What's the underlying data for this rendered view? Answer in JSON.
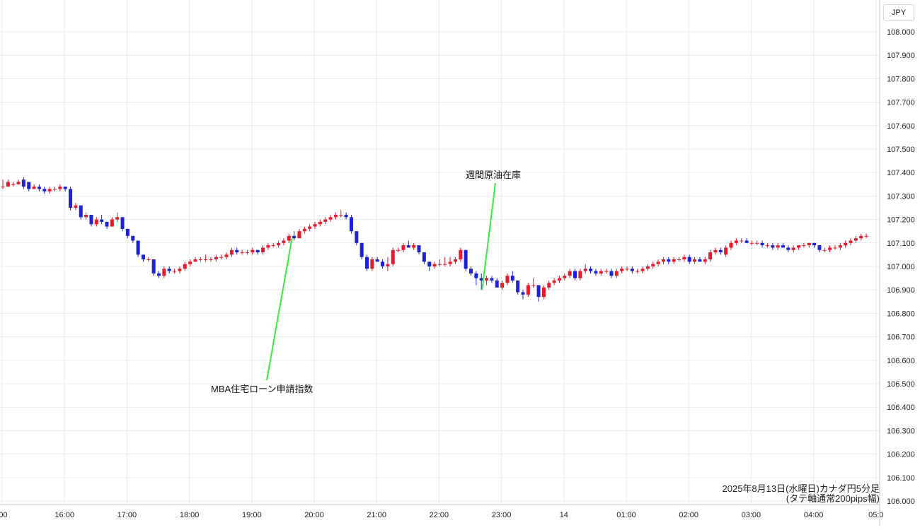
{
  "chart_data": {
    "type": "candlestick",
    "caption_line1": "2025年8月13日(水曜日)カナダ円5分足",
    "caption_line2": "(タテ軸通常200pips幅)",
    "currency": "JPY",
    "ylim": [
      106.0,
      108.0
    ],
    "y_ticks": [
      "108.000",
      "107.900",
      "107.800",
      "107.700",
      "107.600",
      "107.500",
      "107.400",
      "107.300",
      "107.200",
      "107.100",
      "107.000",
      "106.900",
      "106.800",
      "106.700",
      "106.600",
      "106.500",
      "106.400",
      "106.300",
      "106.200",
      "106.100",
      "106.000"
    ],
    "x_ticks": [
      ":00",
      "16:00",
      "17:00",
      "18:00",
      "19:00",
      "20:00",
      "21:00",
      "22:00",
      "23:00",
      "14",
      "01:00",
      "02:00",
      "03:00",
      "04:00",
      "05:0"
    ],
    "grid": true,
    "up_color": "#e8192c",
    "down_color": "#1e22d6",
    "annotation_color": "#3bea3b",
    "annotations": [
      {
        "label": "MBA住宅ローン申請指数",
        "bar": 56
      },
      {
        "label": "週間原油在庫",
        "bar": 92
      }
    ],
    "candles": [
      {
        "o": 107.34,
        "h": 107.37,
        "l": 107.33,
        "c": 107.34
      },
      {
        "o": 107.34,
        "h": 107.37,
        "l": 107.34,
        "c": 107.36
      },
      {
        "o": 107.35,
        "h": 107.36,
        "l": 107.34,
        "c": 107.35
      },
      {
        "o": 107.35,
        "h": 107.37,
        "l": 107.35,
        "c": 107.36
      },
      {
        "o": 107.37,
        "h": 107.38,
        "l": 107.33,
        "c": 107.34
      },
      {
        "o": 107.36,
        "h": 107.36,
        "l": 107.32,
        "c": 107.33
      },
      {
        "o": 107.33,
        "h": 107.35,
        "l": 107.33,
        "c": 107.34
      },
      {
        "o": 107.34,
        "h": 107.35,
        "l": 107.32,
        "c": 107.33
      },
      {
        "o": 107.33,
        "h": 107.34,
        "l": 107.31,
        "c": 107.32
      },
      {
        "o": 107.32,
        "h": 107.34,
        "l": 107.31,
        "c": 107.33
      },
      {
        "o": 107.33,
        "h": 107.34,
        "l": 107.32,
        "c": 107.33
      },
      {
        "o": 107.33,
        "h": 107.35,
        "l": 107.32,
        "c": 107.34
      },
      {
        "o": 107.34,
        "h": 107.34,
        "l": 107.32,
        "c": 107.33
      },
      {
        "o": 107.33,
        "h": 107.34,
        "l": 107.24,
        "c": 107.25
      },
      {
        "o": 107.25,
        "h": 107.27,
        "l": 107.24,
        "c": 107.26
      },
      {
        "o": 107.26,
        "h": 107.26,
        "l": 107.2,
        "c": 107.21
      },
      {
        "o": 107.21,
        "h": 107.23,
        "l": 107.2,
        "c": 107.22
      },
      {
        "o": 107.22,
        "h": 107.22,
        "l": 107.17,
        "c": 107.18
      },
      {
        "o": 107.18,
        "h": 107.21,
        "l": 107.17,
        "c": 107.2
      },
      {
        "o": 107.2,
        "h": 107.22,
        "l": 107.18,
        "c": 107.19
      },
      {
        "o": 107.19,
        "h": 107.19,
        "l": 107.16,
        "c": 107.17
      },
      {
        "o": 107.17,
        "h": 107.21,
        "l": 107.17,
        "c": 107.2
      },
      {
        "o": 107.2,
        "h": 107.23,
        "l": 107.19,
        "c": 107.21
      },
      {
        "o": 107.21,
        "h": 107.21,
        "l": 107.15,
        "c": 107.16
      },
      {
        "o": 107.16,
        "h": 107.16,
        "l": 107.12,
        "c": 107.13
      },
      {
        "o": 107.13,
        "h": 107.13,
        "l": 107.1,
        "c": 107.11
      },
      {
        "o": 107.11,
        "h": 107.11,
        "l": 107.04,
        "c": 107.05
      },
      {
        "o": 107.05,
        "h": 107.05,
        "l": 107.02,
        "c": 107.03
      },
      {
        "o": 107.03,
        "h": 107.04,
        "l": 107.02,
        "c": 107.03
      },
      {
        "o": 107.03,
        "h": 107.03,
        "l": 106.96,
        "c": 106.97
      },
      {
        "o": 106.97,
        "h": 106.98,
        "l": 106.95,
        "c": 106.96
      },
      {
        "o": 106.96,
        "h": 107.0,
        "l": 106.95,
        "c": 106.99
      },
      {
        "o": 106.99,
        "h": 107.0,
        "l": 106.97,
        "c": 106.98
      },
      {
        "o": 106.98,
        "h": 106.99,
        "l": 106.97,
        "c": 106.98
      },
      {
        "o": 106.98,
        "h": 107.0,
        "l": 106.97,
        "c": 106.99
      },
      {
        "o": 106.99,
        "h": 107.02,
        "l": 106.98,
        "c": 107.01
      },
      {
        "o": 107.01,
        "h": 107.03,
        "l": 107.0,
        "c": 107.02
      },
      {
        "o": 107.02,
        "h": 107.04,
        "l": 107.02,
        "c": 107.03
      },
      {
        "o": 107.03,
        "h": 107.04,
        "l": 107.02,
        "c": 107.03
      },
      {
        "o": 107.03,
        "h": 107.05,
        "l": 107.02,
        "c": 107.03
      },
      {
        "o": 107.03,
        "h": 107.04,
        "l": 107.02,
        "c": 107.03
      },
      {
        "o": 107.03,
        "h": 107.05,
        "l": 107.02,
        "c": 107.04
      },
      {
        "o": 107.04,
        "h": 107.05,
        "l": 107.03,
        "c": 107.04
      },
      {
        "o": 107.04,
        "h": 107.06,
        "l": 107.03,
        "c": 107.05
      },
      {
        "o": 107.05,
        "h": 107.08,
        "l": 107.04,
        "c": 107.07
      },
      {
        "o": 107.07,
        "h": 107.08,
        "l": 107.05,
        "c": 107.06
      },
      {
        "o": 107.06,
        "h": 107.07,
        "l": 107.05,
        "c": 107.06
      },
      {
        "o": 107.06,
        "h": 107.07,
        "l": 107.05,
        "c": 107.06
      },
      {
        "o": 107.06,
        "h": 107.08,
        "l": 107.05,
        "c": 107.07
      },
      {
        "o": 107.07,
        "h": 107.07,
        "l": 107.05,
        "c": 107.06
      },
      {
        "o": 107.06,
        "h": 107.09,
        "l": 107.05,
        "c": 107.08
      },
      {
        "o": 107.08,
        "h": 107.1,
        "l": 107.07,
        "c": 107.09
      },
      {
        "o": 107.09,
        "h": 107.1,
        "l": 107.08,
        "c": 107.09
      },
      {
        "o": 107.09,
        "h": 107.11,
        "l": 107.08,
        "c": 107.1
      },
      {
        "o": 107.1,
        "h": 107.12,
        "l": 107.09,
        "c": 107.11
      },
      {
        "o": 107.11,
        "h": 107.14,
        "l": 107.1,
        "c": 107.13
      },
      {
        "o": 107.13,
        "h": 107.15,
        "l": 107.11,
        "c": 107.12
      },
      {
        "o": 107.12,
        "h": 107.16,
        "l": 107.12,
        "c": 107.15
      },
      {
        "o": 107.15,
        "h": 107.17,
        "l": 107.14,
        "c": 107.16
      },
      {
        "o": 107.16,
        "h": 107.18,
        "l": 107.15,
        "c": 107.17
      },
      {
        "o": 107.17,
        "h": 107.19,
        "l": 107.16,
        "c": 107.18
      },
      {
        "o": 107.18,
        "h": 107.2,
        "l": 107.17,
        "c": 107.19
      },
      {
        "o": 107.19,
        "h": 107.21,
        "l": 107.18,
        "c": 107.2
      },
      {
        "o": 107.2,
        "h": 107.22,
        "l": 107.19,
        "c": 107.21
      },
      {
        "o": 107.21,
        "h": 107.23,
        "l": 107.2,
        "c": 107.22
      },
      {
        "o": 107.22,
        "h": 107.24,
        "l": 107.21,
        "c": 107.22
      },
      {
        "o": 107.22,
        "h": 107.23,
        "l": 107.2,
        "c": 107.21
      },
      {
        "o": 107.21,
        "h": 107.22,
        "l": 107.14,
        "c": 107.15
      },
      {
        "o": 107.15,
        "h": 107.15,
        "l": 107.09,
        "c": 107.1
      },
      {
        "o": 107.1,
        "h": 107.1,
        "l": 107.03,
        "c": 107.04
      },
      {
        "o": 107.04,
        "h": 107.05,
        "l": 106.98,
        "c": 106.99
      },
      {
        "o": 106.99,
        "h": 107.04,
        "l": 106.98,
        "c": 107.03
      },
      {
        "o": 107.03,
        "h": 107.04,
        "l": 107.02,
        "c": 107.02
      },
      {
        "o": 107.02,
        "h": 107.03,
        "l": 106.99,
        "c": 107.0
      },
      {
        "o": 107.0,
        "h": 107.04,
        "l": 106.98,
        "c": 107.01
      },
      {
        "o": 107.01,
        "h": 107.08,
        "l": 107.0,
        "c": 107.07
      },
      {
        "o": 107.07,
        "h": 107.08,
        "l": 107.06,
        "c": 107.07
      },
      {
        "o": 107.07,
        "h": 107.1,
        "l": 107.06,
        "c": 107.09
      },
      {
        "o": 107.09,
        "h": 107.11,
        "l": 107.08,
        "c": 107.08
      },
      {
        "o": 107.08,
        "h": 107.1,
        "l": 107.07,
        "c": 107.09
      },
      {
        "o": 107.09,
        "h": 107.09,
        "l": 107.05,
        "c": 107.06
      },
      {
        "o": 107.06,
        "h": 107.06,
        "l": 107.01,
        "c": 107.02
      },
      {
        "o": 107.02,
        "h": 107.02,
        "l": 106.98,
        "c": 107.0
      },
      {
        "o": 107.0,
        "h": 107.02,
        "l": 106.99,
        "c": 107.01
      },
      {
        "o": 107.01,
        "h": 107.03,
        "l": 107.0,
        "c": 107.01
      },
      {
        "o": 107.01,
        "h": 107.04,
        "l": 107.0,
        "c": 107.01
      },
      {
        "o": 107.01,
        "h": 107.04,
        "l": 107.0,
        "c": 107.02
      },
      {
        "o": 107.02,
        "h": 107.04,
        "l": 107.01,
        "c": 107.03
      },
      {
        "o": 107.03,
        "h": 107.08,
        "l": 107.02,
        "c": 107.07
      },
      {
        "o": 107.07,
        "h": 107.07,
        "l": 106.98,
        "c": 106.99
      },
      {
        "o": 106.99,
        "h": 107.0,
        "l": 106.96,
        "c": 106.97
      },
      {
        "o": 106.97,
        "h": 106.98,
        "l": 106.92,
        "c": 106.95
      },
      {
        "o": 106.95,
        "h": 106.97,
        "l": 106.9,
        "c": 106.94
      },
      {
        "o": 106.94,
        "h": 106.96,
        "l": 106.92,
        "c": 106.95
      },
      {
        "o": 106.95,
        "h": 106.96,
        "l": 106.93,
        "c": 106.94
      },
      {
        "o": 106.94,
        "h": 106.95,
        "l": 106.91,
        "c": 106.91
      },
      {
        "o": 106.91,
        "h": 106.94,
        "l": 106.9,
        "c": 106.93
      },
      {
        "o": 106.93,
        "h": 106.97,
        "l": 106.92,
        "c": 106.96
      },
      {
        "o": 106.96,
        "h": 106.98,
        "l": 106.93,
        "c": 106.94
      },
      {
        "o": 106.94,
        "h": 106.94,
        "l": 106.88,
        "c": 106.89
      },
      {
        "o": 106.89,
        "h": 106.9,
        "l": 106.86,
        "c": 106.88
      },
      {
        "o": 106.88,
        "h": 106.93,
        "l": 106.87,
        "c": 106.92
      },
      {
        "o": 106.92,
        "h": 106.95,
        "l": 106.91,
        "c": 106.92
      },
      {
        "o": 106.92,
        "h": 106.92,
        "l": 106.85,
        "c": 106.87
      },
      {
        "o": 106.87,
        "h": 106.92,
        "l": 106.86,
        "c": 106.91
      },
      {
        "o": 106.91,
        "h": 106.94,
        "l": 106.9,
        "c": 106.93
      },
      {
        "o": 106.93,
        "h": 106.95,
        "l": 106.92,
        "c": 106.94
      },
      {
        "o": 106.94,
        "h": 106.96,
        "l": 106.93,
        "c": 106.95
      },
      {
        "o": 106.95,
        "h": 106.97,
        "l": 106.94,
        "c": 106.96
      },
      {
        "o": 106.96,
        "h": 106.99,
        "l": 106.95,
        "c": 106.98
      },
      {
        "o": 106.98,
        "h": 106.99,
        "l": 106.94,
        "c": 106.95
      },
      {
        "o": 106.95,
        "h": 106.99,
        "l": 106.94,
        "c": 106.98
      },
      {
        "o": 106.98,
        "h": 107.01,
        "l": 106.97,
        "c": 106.99
      },
      {
        "o": 106.99,
        "h": 107.0,
        "l": 106.97,
        "c": 106.98
      },
      {
        "o": 106.98,
        "h": 106.99,
        "l": 106.96,
        "c": 106.97
      },
      {
        "o": 106.97,
        "h": 106.99,
        "l": 106.96,
        "c": 106.98
      },
      {
        "o": 106.98,
        "h": 106.99,
        "l": 106.97,
        "c": 106.98
      },
      {
        "o": 106.98,
        "h": 106.99,
        "l": 106.95,
        "c": 106.96
      },
      {
        "o": 106.96,
        "h": 106.99,
        "l": 106.95,
        "c": 106.98
      },
      {
        "o": 106.98,
        "h": 107.0,
        "l": 106.97,
        "c": 106.99
      },
      {
        "o": 106.99,
        "h": 107.0,
        "l": 106.98,
        "c": 106.99
      },
      {
        "o": 106.99,
        "h": 107.0,
        "l": 106.97,
        "c": 106.98
      },
      {
        "o": 106.98,
        "h": 106.99,
        "l": 106.97,
        "c": 106.98
      },
      {
        "o": 106.98,
        "h": 107.0,
        "l": 106.97,
        "c": 106.99
      },
      {
        "o": 106.99,
        "h": 107.01,
        "l": 106.98,
        "c": 107.0
      },
      {
        "o": 107.0,
        "h": 107.02,
        "l": 106.99,
        "c": 107.01
      },
      {
        "o": 107.01,
        "h": 107.03,
        "l": 107.0,
        "c": 107.02
      },
      {
        "o": 107.02,
        "h": 107.04,
        "l": 107.01,
        "c": 107.03
      },
      {
        "o": 107.03,
        "h": 107.04,
        "l": 107.01,
        "c": 107.02
      },
      {
        "o": 107.02,
        "h": 107.04,
        "l": 107.01,
        "c": 107.03
      },
      {
        "o": 107.03,
        "h": 107.04,
        "l": 107.02,
        "c": 107.03
      },
      {
        "o": 107.03,
        "h": 107.05,
        "l": 107.02,
        "c": 107.04
      },
      {
        "o": 107.04,
        "h": 107.05,
        "l": 107.01,
        "c": 107.02
      },
      {
        "o": 107.02,
        "h": 107.04,
        "l": 107.01,
        "c": 107.03
      },
      {
        "o": 107.03,
        "h": 107.04,
        "l": 107.02,
        "c": 107.02
      },
      {
        "o": 107.02,
        "h": 107.04,
        "l": 107.01,
        "c": 107.03
      },
      {
        "o": 107.03,
        "h": 107.07,
        "l": 107.02,
        "c": 107.06
      },
      {
        "o": 107.06,
        "h": 107.08,
        "l": 107.05,
        "c": 107.07
      },
      {
        "o": 107.07,
        "h": 107.08,
        "l": 107.05,
        "c": 107.06
      },
      {
        "o": 107.05,
        "h": 107.09,
        "l": 107.04,
        "c": 107.08
      },
      {
        "o": 107.08,
        "h": 107.11,
        "l": 107.07,
        "c": 107.1
      },
      {
        "o": 107.1,
        "h": 107.12,
        "l": 107.09,
        "c": 107.11
      },
      {
        "o": 107.11,
        "h": 107.12,
        "l": 107.1,
        "c": 107.11
      },
      {
        "o": 107.11,
        "h": 107.12,
        "l": 107.1,
        "c": 107.1
      },
      {
        "o": 107.1,
        "h": 107.11,
        "l": 107.09,
        "c": 107.1
      },
      {
        "o": 107.1,
        "h": 107.11,
        "l": 107.09,
        "c": 107.1
      },
      {
        "o": 107.1,
        "h": 107.11,
        "l": 107.08,
        "c": 107.09
      },
      {
        "o": 107.09,
        "h": 107.1,
        "l": 107.08,
        "c": 107.09
      },
      {
        "o": 107.09,
        "h": 107.1,
        "l": 107.07,
        "c": 107.08
      },
      {
        "o": 107.08,
        "h": 107.1,
        "l": 107.07,
        "c": 107.09
      },
      {
        "o": 107.09,
        "h": 107.1,
        "l": 107.08,
        "c": 107.08
      },
      {
        "o": 107.08,
        "h": 107.09,
        "l": 107.06,
        "c": 107.07
      },
      {
        "o": 107.07,
        "h": 107.09,
        "l": 107.06,
        "c": 107.08
      },
      {
        "o": 107.08,
        "h": 107.09,
        "l": 107.07,
        "c": 107.09
      },
      {
        "o": 107.09,
        "h": 107.1,
        "l": 107.08,
        "c": 107.09
      },
      {
        "o": 107.09,
        "h": 107.1,
        "l": 107.08,
        "c": 107.1
      },
      {
        "o": 107.1,
        "h": 107.1,
        "l": 107.08,
        "c": 107.09
      },
      {
        "o": 107.09,
        "h": 107.09,
        "l": 107.06,
        "c": 107.07
      },
      {
        "o": 107.07,
        "h": 107.08,
        "l": 107.06,
        "c": 107.07
      },
      {
        "o": 107.07,
        "h": 107.09,
        "l": 107.06,
        "c": 107.08
      },
      {
        "o": 107.08,
        "h": 107.09,
        "l": 107.07,
        "c": 107.08
      },
      {
        "o": 107.08,
        "h": 107.1,
        "l": 107.07,
        "c": 107.09
      },
      {
        "o": 107.09,
        "h": 107.11,
        "l": 107.08,
        "c": 107.1
      },
      {
        "o": 107.1,
        "h": 107.12,
        "l": 107.09,
        "c": 107.11
      },
      {
        "o": 107.11,
        "h": 107.13,
        "l": 107.1,
        "c": 107.12
      },
      {
        "o": 107.12,
        "h": 107.14,
        "l": 107.11,
        "c": 107.13
      },
      {
        "o": 107.13,
        "h": 107.14,
        "l": 107.12,
        "c": 107.13
      }
    ]
  }
}
